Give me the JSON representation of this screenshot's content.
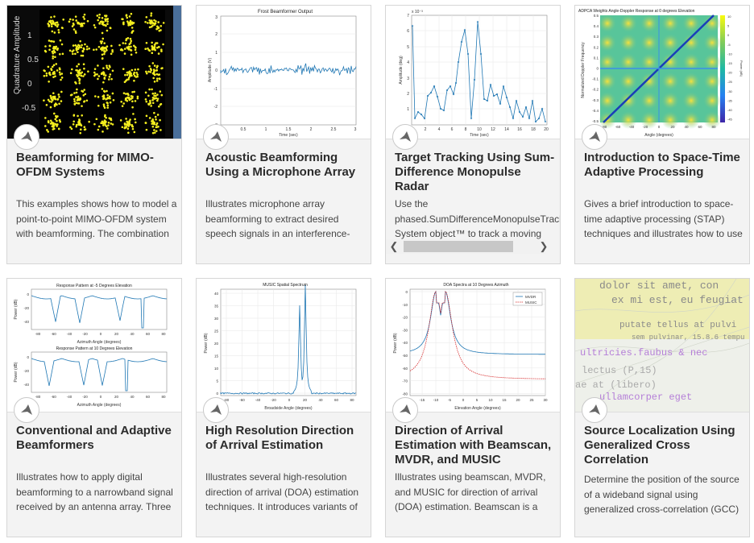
{
  "cards": [
    {
      "title": "Beamforming for MIMO-OFDM Systems",
      "description": "This examples shows how to model a point-to-point MIMO-OFDM system with beamforming. The combination of multiple-input-",
      "thumbnail": {
        "ylabel": "Quadrature Amplitude",
        "yticks": [
          "1",
          "0.5",
          "0",
          "-0.5"
        ]
      }
    },
    {
      "title": "Acoustic Beamforming Using a Microphone Array",
      "description": "Illustrates microphone array beamforming to extract desired speech signals in an interference-dominant, noisy environment. Such",
      "thumbnail": {
        "title": "Frost Beamformer Output",
        "ylabel": "Amplitude (V)",
        "xlabel": "Time (sec)",
        "yticks": [
          "3",
          "2",
          "1",
          "0",
          "-1",
          "-2",
          "-3"
        ],
        "xticks": [
          "0.5",
          "1",
          "1.5",
          "2",
          "2.5",
          "3"
        ]
      }
    },
    {
      "title": "Target Tracking Using Sum-Difference Monopulse Radar",
      "description": "Use the phased.SumDifferenceMonopulseTracker System object™ to track a moving",
      "thumbnail": {
        "multiplier": "x 10⁻³",
        "ylabel": "Amplitude (deg)",
        "xlabel": "Time (sec)",
        "yticks": [
          "7",
          "6",
          "5",
          "4",
          "3",
          "2",
          "1"
        ],
        "xticks": [
          "2",
          "4",
          "6",
          "8",
          "10",
          "12",
          "14",
          "16",
          "18",
          "20"
        ]
      }
    },
    {
      "title": "Introduction to Space-Time Adaptive Processing",
      "description": "Gives a brief introduction to space-time adaptive processing (STAP) techniques and illustrates how to use Phased Array System",
      "thumbnail": {
        "title": "ADPCA Weights Angle-Doppler Response at 0 degrees Elevation",
        "ylabel": "Normalized Doppler Frequency",
        "xlabel": "Angle (degrees)",
        "colorbar_label": "Power (dB)",
        "yticks": [
          "0.5",
          "0.4",
          "0.3",
          "0.2",
          "0.1",
          "0",
          "-0.1",
          "-0.2",
          "-0.3",
          "-0.4",
          "-0.5"
        ],
        "xticks": [
          "-80",
          "-60",
          "-40",
          "-20",
          "0",
          "20",
          "40",
          "60",
          "80"
        ],
        "cticks": [
          "10",
          "5",
          "0",
          "-5",
          "-10",
          "-15",
          "-20",
          "-25",
          "-30",
          "-35",
          "-40",
          "-45"
        ]
      }
    },
    {
      "title": "Conventional and Adaptive Beamformers",
      "description": "Illustrates how to apply digital beamforming to a narrowband signal received by an antenna array. Three beamforming algorithms are",
      "thumbnail": {
        "title1": "Response Pattern at -5 Degrees Elevation",
        "title2": "Response Pattern at 10 Degrees Elevation",
        "ylabel": "Power (dB)",
        "xlabel": "Azimuth Angle (degrees)",
        "yticks": [
          "0",
          "-20",
          "-40"
        ],
        "xticks": [
          "-80",
          "-60",
          "-40",
          "-20",
          "0",
          "20",
          "40",
          "60",
          "80"
        ]
      }
    },
    {
      "title": "High Resolution Direction of Arrival Estimation",
      "description": "Illustrates several high-resolution direction of arrival (DOA) estimation techniques. It introduces variants of the MUSIC, root-MUSIC, ESPRIT",
      "thumbnail": {
        "title": "MUSIC Spatial Spectrum",
        "ylabel": "Power (dB)",
        "xlabel": "Broadside Angle (degrees)",
        "yticks": [
          "40",
          "35",
          "30",
          "25",
          "20",
          "15",
          "10",
          "5",
          "0"
        ],
        "xticks": [
          "-80",
          "-60",
          "-40",
          "-20",
          "0",
          "20",
          "40",
          "60",
          "80"
        ]
      }
    },
    {
      "title": "Direction of Arrival Estimation with Beamscan, MVDR, and MUSIC",
      "description": "Illustrates using beamscan, MVDR, and MUSIC for direction of arrival (DOA) estimation. Beamscan is a technique that forms a conventional",
      "thumbnail": {
        "title": "DOA Spectra at 10 Degrees Azimuth",
        "ylabel": "Power (dB)",
        "xlabel": "Elevation Angle (degrees)",
        "legend": [
          "MVDR",
          "MUSIC"
        ],
        "yticks": [
          "0",
          "-10",
          "-20",
          "-30",
          "-40",
          "-50",
          "-60",
          "-70",
          "-80"
        ],
        "xticks": [
          "-15",
          "-10",
          "-5",
          "0",
          "5",
          "10",
          "15",
          "20",
          "25",
          "30"
        ]
      }
    },
    {
      "title": "Source Localization Using Generalized Cross Correlation",
      "description": "Determine the position of the source of a wideband signal using generalized cross-correlation (GCC) and triangulation. For simplicity, this",
      "thumbnail": {
        "lines": [
          "dolor sit amet, con",
          "ex mi est, eu feugiat",
          "putate tellus at pulvi",
          "sem pulvinar, 15.8.6 tempu",
          "ultricies.faubus & nec",
          "lectus (P,15)",
          "ae at (libero)",
          "ullamcorper eget"
        ]
      }
    }
  ],
  "horizontal_scroll": {
    "left_arrow": "❮",
    "right_arrow": "❯"
  },
  "colors": {
    "card_bg": "#f3f3f3",
    "card_border": "#d6d6d6",
    "plot_line": "#1f77b4",
    "music_line": "#d62728"
  }
}
